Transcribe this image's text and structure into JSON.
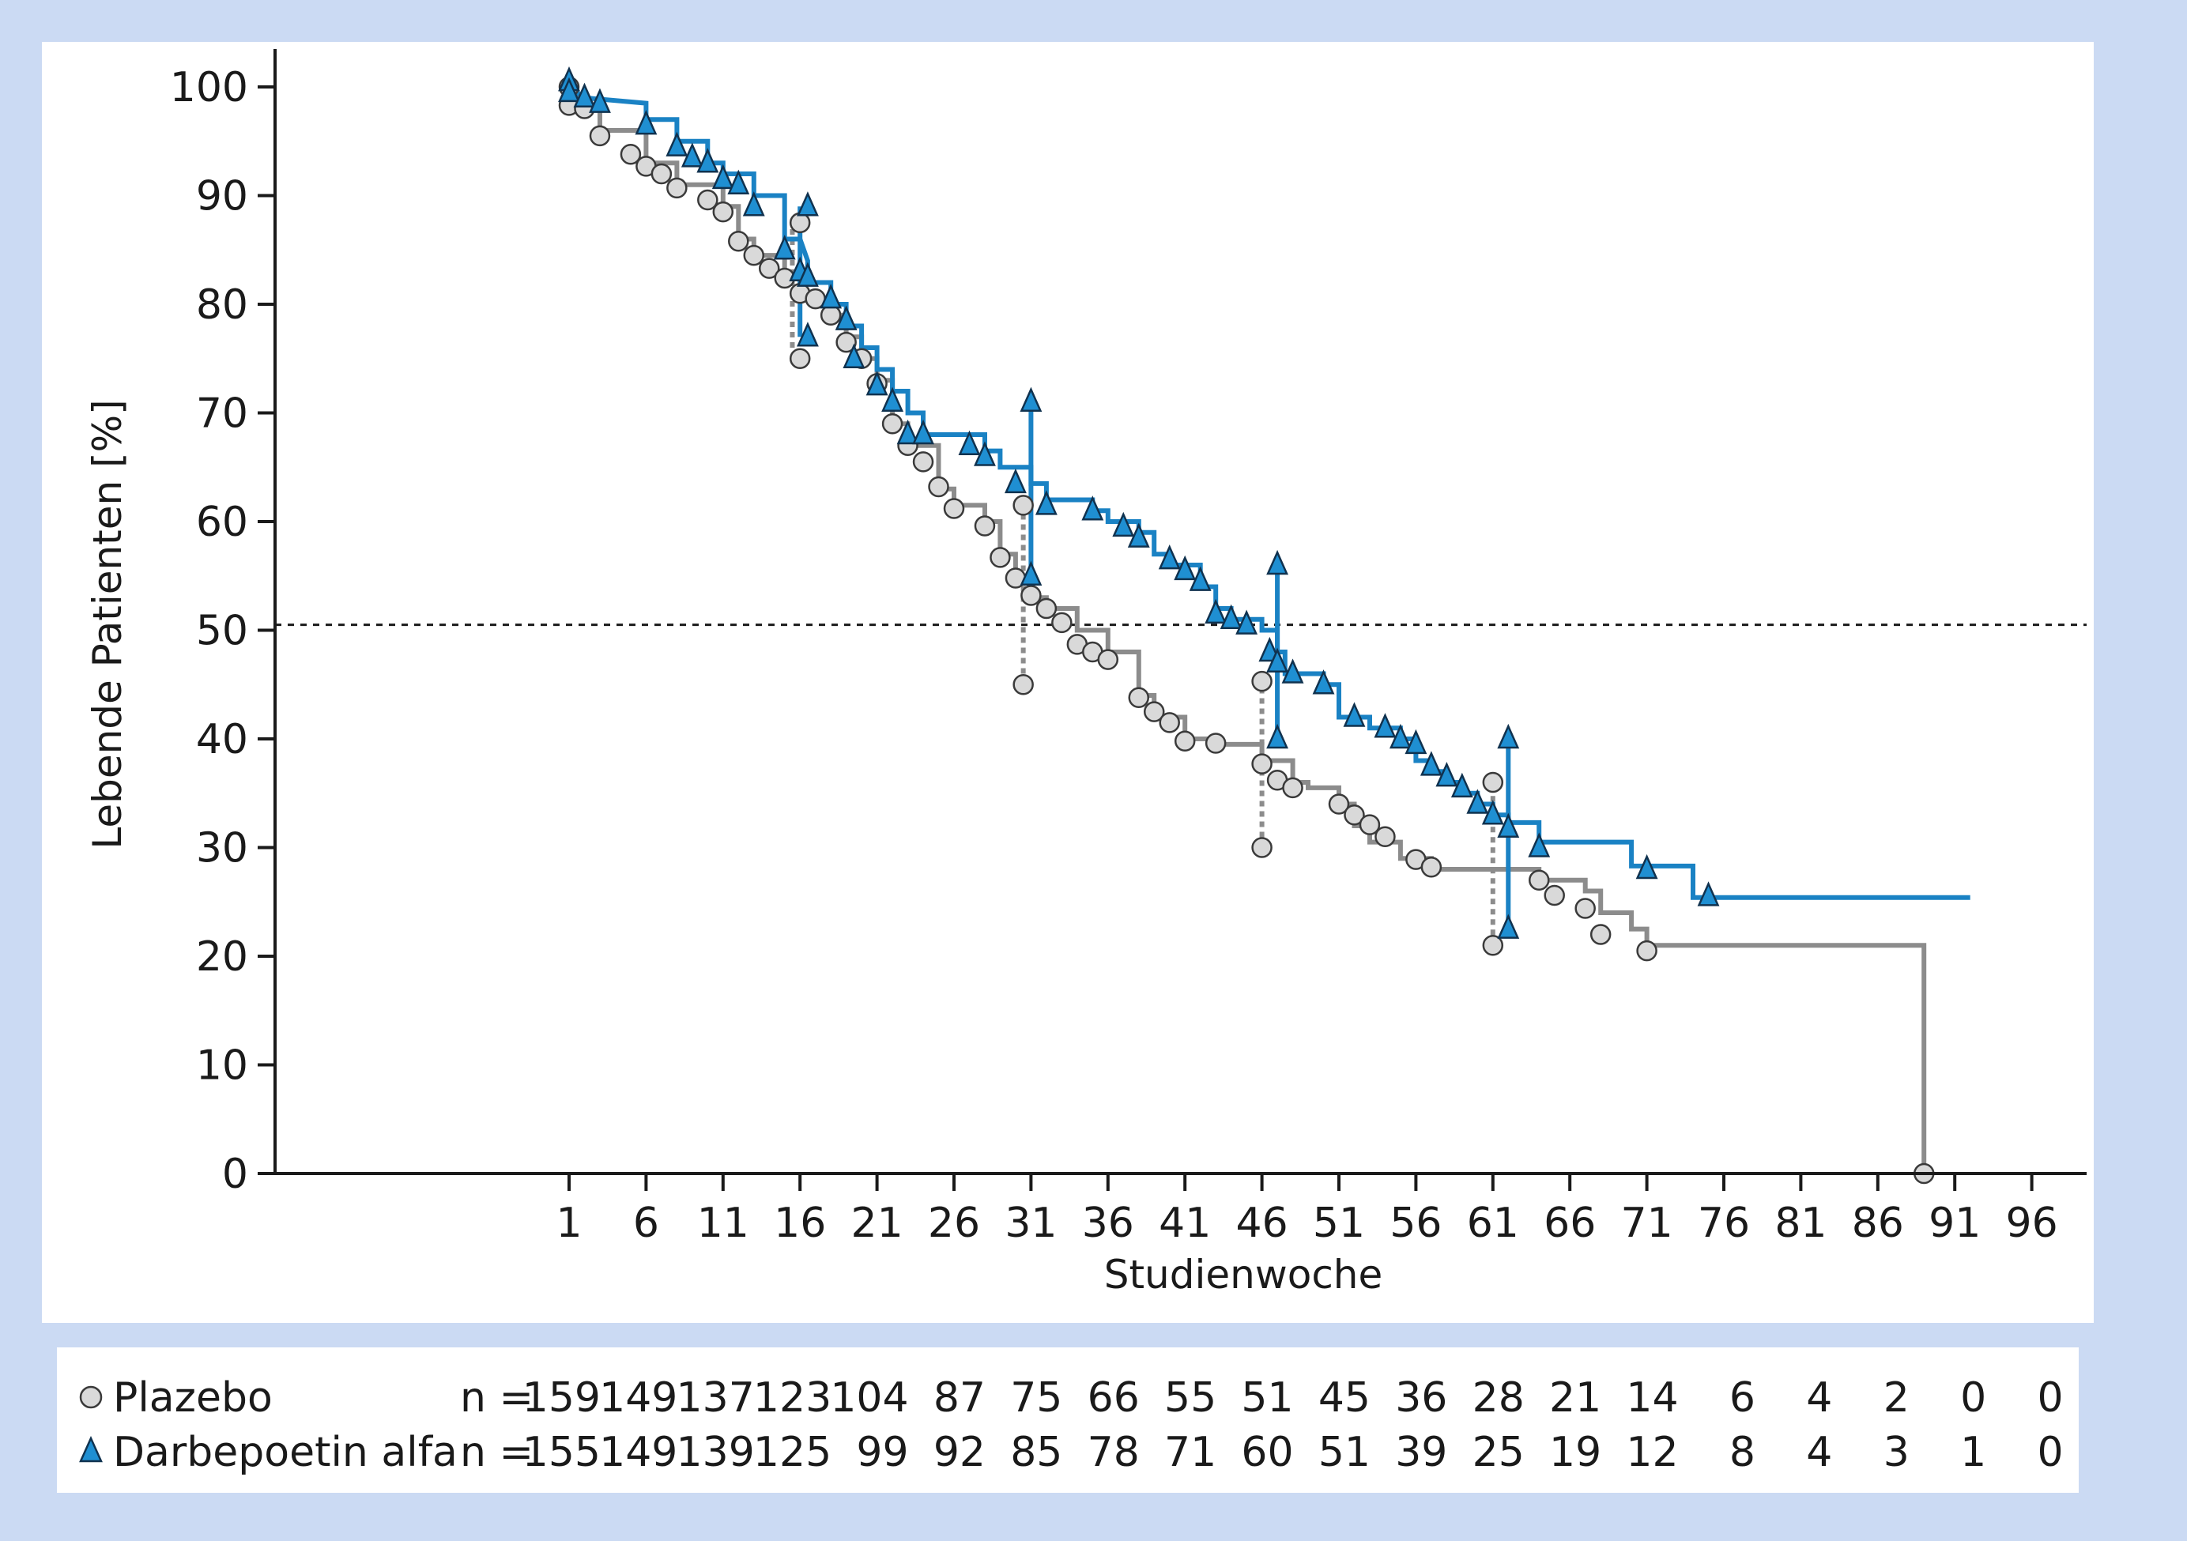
{
  "chart_data": {
    "type": "line",
    "subtype": "kaplan-meier",
    "xlabel": "Studienwoche",
    "ylabel": "Lebende Patienten [%]",
    "x_ticks": [
      1,
      6,
      11,
      16,
      21,
      26,
      31,
      36,
      41,
      46,
      51,
      56,
      61,
      66,
      71,
      76,
      81,
      86,
      91,
      96
    ],
    "y_ticks": [
      0,
      10,
      20,
      30,
      40,
      50,
      60,
      70,
      80,
      90,
      100
    ],
    "xlim": [
      -17,
      96
    ],
    "ylim": [
      0,
      100
    ],
    "reference_line": {
      "y": 50.5,
      "style": "dotted"
    },
    "colors": {
      "plazebo": "#8c8c8c",
      "darbepoetin": "#1a82c4",
      "marker_fill_plazebo": "#d9d9d9",
      "marker_fill_darbepoetin": "#1f8fd2"
    },
    "series": [
      {
        "name": "Darbepoetin alfa",
        "marker": "triangle",
        "step": [
          [
            1,
            100
          ],
          [
            2,
            99
          ],
          [
            6,
            98.5
          ],
          [
            6,
            97
          ],
          [
            8,
            97
          ],
          [
            8,
            95
          ],
          [
            10,
            95
          ],
          [
            10,
            93
          ],
          [
            11,
            93
          ],
          [
            11,
            92
          ],
          [
            13,
            92
          ],
          [
            13,
            90
          ],
          [
            15,
            90
          ],
          [
            15,
            86
          ],
          [
            16,
            86
          ],
          [
            16.5,
            84
          ],
          [
            16.5,
            82
          ],
          [
            18,
            82
          ],
          [
            18,
            80
          ],
          [
            19,
            80
          ],
          [
            19,
            78
          ],
          [
            20,
            78
          ],
          [
            20,
            76
          ],
          [
            21,
            76
          ],
          [
            21,
            74
          ],
          [
            22,
            74
          ],
          [
            22,
            72
          ],
          [
            23,
            72
          ],
          [
            23,
            70
          ],
          [
            24,
            70
          ],
          [
            24,
            68
          ],
          [
            28,
            68
          ],
          [
            28,
            66.5
          ],
          [
            29,
            66.5
          ],
          [
            29,
            65
          ],
          [
            31,
            65
          ],
          [
            31,
            63.5
          ],
          [
            32,
            63.5
          ],
          [
            32,
            62
          ],
          [
            35,
            62
          ],
          [
            35,
            61
          ],
          [
            36,
            61
          ],
          [
            36,
            60
          ],
          [
            38,
            60
          ],
          [
            38,
            59
          ],
          [
            39,
            59
          ],
          [
            39,
            57
          ],
          [
            40,
            57
          ],
          [
            40,
            56
          ],
          [
            42,
            56
          ],
          [
            42,
            54
          ],
          [
            43,
            54
          ],
          [
            43,
            52
          ],
          [
            44,
            52
          ],
          [
            44,
            51
          ],
          [
            46,
            51
          ],
          [
            46,
            50
          ],
          [
            47,
            50
          ],
          [
            47,
            48
          ],
          [
            47.5,
            48
          ],
          [
            47.5,
            46
          ],
          [
            50,
            46
          ],
          [
            50,
            45
          ],
          [
            51,
            45
          ],
          [
            51,
            42
          ],
          [
            53,
            42
          ],
          [
            53,
            41
          ],
          [
            55,
            41
          ],
          [
            55,
            40
          ],
          [
            56,
            40
          ],
          [
            56,
            38
          ],
          [
            57,
            38
          ],
          [
            57,
            37
          ],
          [
            58,
            37
          ],
          [
            58,
            36
          ],
          [
            59,
            36
          ],
          [
            59,
            35
          ],
          [
            60,
            35
          ],
          [
            60,
            34
          ],
          [
            61,
            34
          ],
          [
            61,
            33
          ],
          [
            62,
            33
          ],
          [
            62,
            32.3
          ],
          [
            64,
            32.3
          ],
          [
            64,
            30.5
          ],
          [
            70,
            30.5
          ],
          [
            70,
            28.3
          ],
          [
            74,
            28.3
          ],
          [
            74,
            25.4
          ],
          [
            92,
            25.4
          ]
        ],
        "vertical_segments": [
          [
            16,
            77,
            89
          ],
          [
            31,
            55,
            71
          ],
          [
            47,
            40,
            56
          ],
          [
            62,
            23,
            40
          ]
        ],
        "censor_marks": [
          [
            1,
            100.5
          ],
          [
            1,
            99.5
          ],
          [
            2,
            99
          ],
          [
            3,
            98.5
          ],
          [
            6,
            96.5
          ],
          [
            8,
            94.5
          ],
          [
            9,
            93.5
          ],
          [
            10,
            93
          ],
          [
            11,
            91.5
          ],
          [
            12,
            91
          ],
          [
            13,
            89
          ],
          [
            15,
            85
          ],
          [
            16,
            83
          ],
          [
            16.5,
            82.5
          ],
          [
            16.5,
            77
          ],
          [
            16.5,
            89
          ],
          [
            18,
            80.5
          ],
          [
            19,
            78.5
          ],
          [
            19.5,
            75
          ],
          [
            21,
            72.5
          ],
          [
            22,
            71
          ],
          [
            23,
            68
          ],
          [
            24,
            68
          ],
          [
            27,
            67
          ],
          [
            28,
            66
          ],
          [
            30,
            63.5
          ],
          [
            31,
            55
          ],
          [
            31,
            71
          ],
          [
            32,
            61.5
          ],
          [
            35,
            61
          ],
          [
            37,
            59.5
          ],
          [
            38,
            58.5
          ],
          [
            40,
            56.5
          ],
          [
            41,
            55.5
          ],
          [
            42,
            54.5
          ],
          [
            43,
            51.5
          ],
          [
            44,
            51
          ],
          [
            45,
            50.5
          ],
          [
            46.5,
            48
          ],
          [
            47,
            47
          ],
          [
            47,
            40
          ],
          [
            47,
            56
          ],
          [
            48,
            46
          ],
          [
            50,
            45
          ],
          [
            52,
            42
          ],
          [
            54,
            41
          ],
          [
            55,
            40
          ],
          [
            56,
            39.5
          ],
          [
            57,
            37.5
          ],
          [
            58,
            36.5
          ],
          [
            59,
            35.5
          ],
          [
            60,
            34
          ],
          [
            61,
            33
          ],
          [
            62,
            31.8
          ],
          [
            62,
            22.5
          ],
          [
            62,
            40
          ],
          [
            64,
            30
          ],
          [
            71,
            28
          ],
          [
            75,
            25.5
          ]
        ]
      },
      {
        "name": "Plazebo",
        "marker": "circle",
        "step": [
          [
            1,
            99
          ],
          [
            2,
            99
          ],
          [
            2,
            98
          ],
          [
            3,
            98
          ],
          [
            3,
            96
          ],
          [
            6,
            96
          ],
          [
            6,
            93
          ],
          [
            8,
            93
          ],
          [
            8,
            91
          ],
          [
            11,
            91
          ],
          [
            11,
            89
          ],
          [
            12,
            89
          ],
          [
            12,
            86
          ],
          [
            13,
            86
          ],
          [
            13,
            84.5
          ],
          [
            15,
            84.5
          ],
          [
            15,
            83
          ],
          [
            16,
            83
          ],
          [
            16,
            81
          ],
          [
            17,
            81
          ],
          [
            17,
            80
          ],
          [
            18,
            80
          ],
          [
            18,
            79
          ],
          [
            19,
            79
          ],
          [
            19,
            77
          ],
          [
            20,
            77
          ],
          [
            20,
            75
          ],
          [
            21,
            75
          ],
          [
            21,
            73
          ],
          [
            22,
            73
          ],
          [
            22,
            69
          ],
          [
            23,
            69
          ],
          [
            23,
            67
          ],
          [
            25,
            67
          ],
          [
            25,
            63
          ],
          [
            26,
            63
          ],
          [
            26,
            61.5
          ],
          [
            28,
            61.5
          ],
          [
            28,
            60
          ],
          [
            29,
            60
          ],
          [
            29,
            57
          ],
          [
            30,
            57
          ],
          [
            30,
            55
          ],
          [
            31,
            55
          ],
          [
            31,
            53
          ],
          [
            32,
            53
          ],
          [
            32,
            52
          ],
          [
            34,
            52
          ],
          [
            34,
            50
          ],
          [
            36,
            50
          ],
          [
            36,
            48
          ],
          [
            38,
            48
          ],
          [
            38,
            44
          ],
          [
            39,
            44
          ],
          [
            39,
            42
          ],
          [
            41,
            42
          ],
          [
            41,
            40
          ],
          [
            43,
            40
          ],
          [
            43,
            39.5
          ],
          [
            46,
            39.5
          ],
          [
            46,
            38
          ],
          [
            48,
            38
          ],
          [
            48,
            36
          ],
          [
            49,
            36
          ],
          [
            49,
            35.5
          ],
          [
            51,
            35.5
          ],
          [
            51,
            34
          ],
          [
            52,
            34
          ],
          [
            52,
            32
          ],
          [
            53,
            32
          ],
          [
            53,
            30.5
          ],
          [
            55,
            30.5
          ],
          [
            55,
            29
          ],
          [
            57,
            29
          ],
          [
            57,
            28
          ],
          [
            64,
            28
          ],
          [
            64,
            27
          ],
          [
            67,
            27
          ],
          [
            67,
            26
          ],
          [
            68,
            26
          ],
          [
            68,
            24
          ],
          [
            70,
            24
          ],
          [
            70,
            22.5
          ],
          [
            71,
            22.5
          ],
          [
            71,
            21
          ],
          [
            89,
            21
          ],
          [
            89,
            0.3
          ]
        ],
        "vertical_segments": [
          [
            15.5,
            76,
            87
          ],
          [
            30.5,
            46,
            62
          ],
          [
            46,
            30,
            45
          ],
          [
            61,
            21,
            36
          ]
        ],
        "censor_marks": [
          [
            1,
            100
          ],
          [
            1,
            98.3
          ],
          [
            2,
            98
          ],
          [
            3,
            95.5
          ],
          [
            5,
            93.8
          ],
          [
            6,
            92.7
          ],
          [
            7,
            92
          ],
          [
            8,
            90.7
          ],
          [
            10,
            89.6
          ],
          [
            11,
            88.5
          ],
          [
            12,
            85.8
          ],
          [
            13,
            84.5
          ],
          [
            14,
            83.3
          ],
          [
            15,
            82.4
          ],
          [
            16,
            81
          ],
          [
            16,
            75
          ],
          [
            16,
            87.5
          ],
          [
            17,
            80.5
          ],
          [
            18,
            79
          ],
          [
            19,
            76.5
          ],
          [
            20,
            75
          ],
          [
            21,
            72.7
          ],
          [
            22,
            69
          ],
          [
            23,
            67
          ],
          [
            24,
            65.5
          ],
          [
            25,
            63.2
          ],
          [
            26,
            61.2
          ],
          [
            28,
            59.6
          ],
          [
            29,
            56.7
          ],
          [
            30,
            54.8
          ],
          [
            31,
            53.2
          ],
          [
            30.5,
            45
          ],
          [
            30.5,
            61.5
          ],
          [
            32,
            52
          ],
          [
            33,
            50.7
          ],
          [
            34,
            48.7
          ],
          [
            35,
            48
          ],
          [
            36,
            47.3
          ],
          [
            38,
            43.8
          ],
          [
            39,
            42.5
          ],
          [
            40,
            41.5
          ],
          [
            41,
            39.8
          ],
          [
            43,
            39.6
          ],
          [
            46,
            45.3
          ],
          [
            46,
            37.7
          ],
          [
            46,
            30
          ],
          [
            47,
            36.2
          ],
          [
            48,
            35.5
          ],
          [
            51,
            34
          ],
          [
            52,
            33
          ],
          [
            53,
            32.1
          ],
          [
            54,
            31
          ],
          [
            56,
            28.9
          ],
          [
            57,
            28.2
          ],
          [
            61,
            36
          ],
          [
            61,
            21
          ],
          [
            64,
            27
          ],
          [
            65,
            25.6
          ],
          [
            67,
            24.4
          ],
          [
            68,
            22
          ],
          [
            71,
            20.5
          ],
          [
            89,
            0
          ]
        ]
      }
    ],
    "risk_table": {
      "label_prefix": "n =",
      "rows": [
        {
          "name": "Plazebo",
          "marker": "circle",
          "values": [
            "159",
            "149",
            "137",
            "123",
            "104",
            "87",
            "75",
            "66",
            "55",
            "51",
            "45",
            "36",
            "28",
            "21",
            "14",
            "6",
            "4",
            "2",
            "0",
            "0"
          ]
        },
        {
          "name": "Darbepoetin alfa",
          "marker": "triangle",
          "values": [
            "155",
            "149",
            "139",
            "125",
            "99",
            "92",
            "85",
            "78",
            "71",
            "60",
            "51",
            "39",
            "25",
            "19",
            "12",
            "8",
            "4",
            "3",
            "1",
            "0"
          ]
        }
      ]
    }
  }
}
